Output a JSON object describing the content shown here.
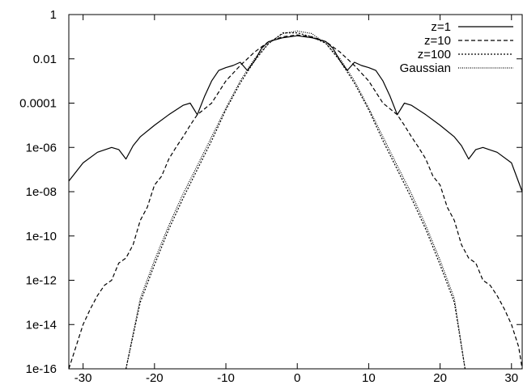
{
  "chart_data": {
    "type": "line",
    "title": "",
    "xlabel": "",
    "ylabel": "",
    "xlim": [
      -32,
      31.5
    ],
    "ylim": [
      1e-16,
      1
    ],
    "y_scale": "log",
    "grid": false,
    "legend_position": "top-right",
    "x_ticks": [
      "-30",
      "-20",
      "-10",
      "0",
      "10",
      "20",
      "30"
    ],
    "x_tick_values": [
      -30,
      -20,
      -10,
      0,
      10,
      20,
      30
    ],
    "y_ticks": [
      "1",
      "0.01",
      "0.0001",
      "1e-06",
      "1e-08",
      "1e-10",
      "1e-12",
      "1e-14",
      "1e-16"
    ],
    "y_tick_values": [
      1,
      0.01,
      0.0001,
      1e-06,
      1e-08,
      1e-10,
      1e-12,
      1e-14,
      1e-16
    ],
    "series": [
      {
        "name": "z=1",
        "style": "solid",
        "x": [
          -32,
          -30,
          -28,
          -26,
          -25,
          -24,
          -23,
          -22,
          -20,
          -18,
          -16,
          -15,
          -14,
          -13,
          -12,
          -11,
          -10,
          -9,
          -8,
          -7,
          -6,
          -5,
          -4,
          -2,
          0,
          2,
          4,
          5,
          6,
          7,
          8,
          9,
          10,
          11,
          12,
          13,
          14,
          15,
          16,
          18,
          20,
          22,
          23,
          24,
          25,
          26,
          28,
          30,
          31.5
        ],
        "y": [
          3e-08,
          2e-07,
          6e-07,
          1e-06,
          8e-07,
          3e-07,
          1.2e-06,
          3e-06,
          1e-05,
          3e-05,
          8e-05,
          0.0001,
          3e-05,
          0.0002,
          0.001,
          0.003,
          0.004,
          0.005,
          0.007,
          0.003,
          0.008,
          0.03,
          0.06,
          0.09,
          0.11,
          0.09,
          0.06,
          0.03,
          0.008,
          0.003,
          0.007,
          0.005,
          0.004,
          0.003,
          0.001,
          0.0002,
          3e-05,
          0.0001,
          8e-05,
          3e-05,
          1e-05,
          3e-06,
          1.2e-06,
          3e-07,
          8e-07,
          1e-06,
          6e-07,
          2e-07,
          1e-08
        ]
      },
      {
        "name": "z=10",
        "style": "dashed",
        "x": [
          -32,
          -30,
          -29,
          -28,
          -27,
          -26,
          -25,
          -24,
          -23,
          -22,
          -21,
          -20,
          -19,
          -18,
          -17,
          -16,
          -15,
          -14,
          -12,
          -10,
          -8,
          -6,
          -4,
          -2,
          0,
          2,
          4,
          6,
          8,
          10,
          12,
          14,
          15,
          16,
          17,
          18,
          19,
          20,
          21,
          22,
          23,
          24,
          25,
          26,
          27,
          28,
          29,
          30,
          31,
          31.5
        ],
        "y": [
          1e-16,
          1e-14,
          5e-14,
          2e-13,
          6e-13,
          1e-12,
          6e-12,
          1e-11,
          4e-11,
          5e-10,
          2e-09,
          2e-08,
          5e-08,
          3e-07,
          1e-06,
          3e-06,
          1e-05,
          3e-05,
          0.0001,
          0.001,
          0.005,
          0.02,
          0.06,
          0.1,
          0.12,
          0.1,
          0.06,
          0.02,
          0.005,
          0.001,
          0.0001,
          3e-05,
          1e-05,
          3e-06,
          1e-06,
          3e-07,
          5e-08,
          2e-08,
          2e-09,
          5e-10,
          4e-11,
          1e-11,
          6e-12,
          1e-12,
          6e-13,
          2e-13,
          5e-14,
          1e-14,
          1e-15,
          1e-16
        ]
      },
      {
        "name": "z=100",
        "style": "dotted",
        "x": [
          -24,
          -22,
          -20,
          -18,
          -16,
          -14,
          -12,
          -10,
          -8,
          -6,
          -4,
          -2,
          0,
          2,
          4,
          6,
          8,
          10,
          12,
          14,
          16,
          18,
          20,
          22,
          23.5
        ],
        "y": [
          1e-16,
          1e-13,
          5e-12,
          2e-10,
          5e-09,
          1e-07,
          2e-06,
          5e-05,
          0.0008,
          0.008,
          0.05,
          0.15,
          0.15,
          0.1,
          0.05,
          0.008,
          0.0008,
          5e-05,
          2e-06,
          1e-07,
          5e-09,
          2e-10,
          5e-12,
          1e-13,
          1e-16
        ]
      },
      {
        "name": "Gaussian",
        "style": "finedotted",
        "x": [
          -24,
          -22,
          -20,
          -18,
          -16,
          -14,
          -12,
          -10,
          -8,
          -6,
          -4,
          -2,
          0,
          2,
          4,
          6,
          8,
          10,
          12,
          14,
          16,
          18,
          20,
          22,
          23.5
        ],
        "y": [
          1e-16,
          1.5e-13,
          8e-12,
          3e-10,
          8e-09,
          1.5e-07,
          3e-06,
          6e-05,
          0.001,
          0.01,
          0.05,
          0.14,
          0.18,
          0.14,
          0.05,
          0.01,
          0.001,
          6e-05,
          3e-06,
          1.5e-07,
          8e-09,
          3e-10,
          8e-12,
          1.5e-13,
          1e-16
        ]
      }
    ]
  }
}
